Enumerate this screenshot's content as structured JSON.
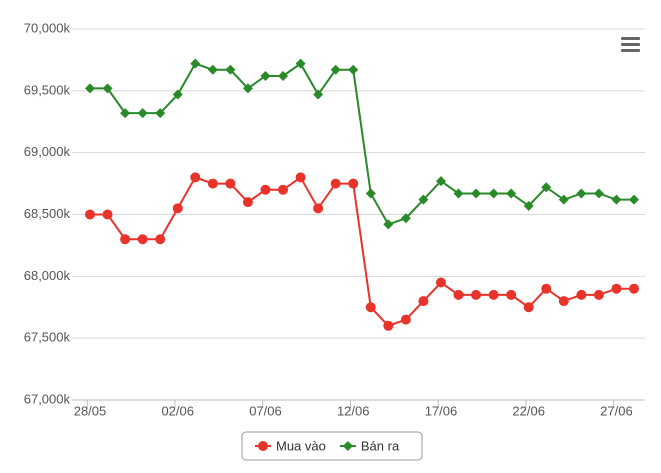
{
  "chart_data": {
    "type": "line",
    "categories": [
      "28/05",
      null,
      null,
      null,
      null,
      "02/06",
      null,
      null,
      null,
      null,
      "07/06",
      null,
      null,
      null,
      null,
      "12/06",
      null,
      null,
      null,
      null,
      "17/06",
      null,
      null,
      null,
      null,
      "22/06",
      null,
      null,
      null,
      null,
      "27/06",
      null
    ],
    "series": [
      {
        "name": "Mua vào",
        "color": "#e8332a",
        "marker": "circle",
        "values": [
          68500,
          68500,
          68300,
          68300,
          68300,
          68550,
          68800,
          68750,
          68750,
          68600,
          68700,
          68700,
          68800,
          68550,
          68750,
          68750,
          67750,
          67600,
          67650,
          67800,
          67950,
          67850,
          67850,
          67850,
          67850,
          67750,
          67900,
          67800,
          67850,
          67850,
          67900,
          67900
        ]
      },
      {
        "name": "Bán ra",
        "color": "#2a8a2a",
        "marker": "diamond",
        "values": [
          69520,
          69520,
          69320,
          69320,
          69320,
          69470,
          69720,
          69670,
          69670,
          69520,
          69620,
          69620,
          69720,
          69470,
          69670,
          69670,
          68670,
          68420,
          68470,
          68620,
          68770,
          68670,
          68670,
          68670,
          68670,
          68570,
          68720,
          68620,
          68670,
          68670,
          68620,
          68620
        ]
      }
    ],
    "ylim": [
      67000,
      70000
    ],
    "yticks": [
      {
        "value": 67000,
        "label": "67,000k"
      },
      {
        "value": 67500,
        "label": "67,500k"
      },
      {
        "value": 68000,
        "label": "68,000k"
      },
      {
        "value": 68500,
        "label": "68,500k"
      },
      {
        "value": 69000,
        "label": "69,000k"
      },
      {
        "value": 69500,
        "label": "69,500k"
      },
      {
        "value": 70000,
        "label": "70,000k"
      }
    ],
    "grid": true,
    "legend": "bottom"
  }
}
